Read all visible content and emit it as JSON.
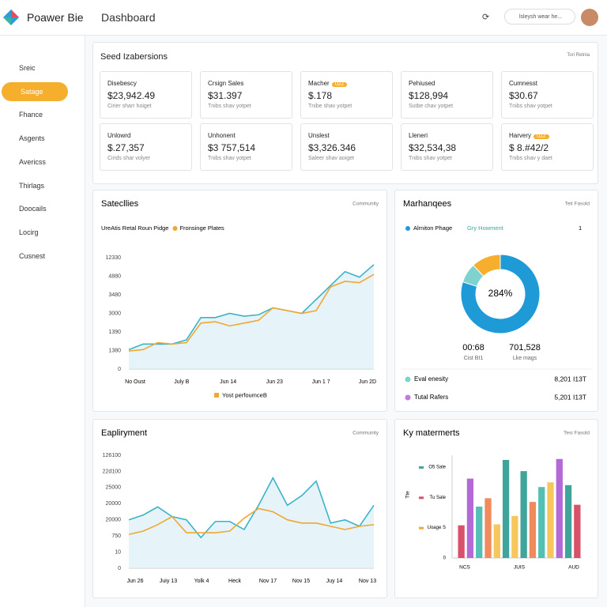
{
  "header": {
    "logo": "Poawer Bie",
    "title": "Dashboard",
    "search": "lsleysh wear he..."
  },
  "sidebar": {
    "active": 1,
    "items": [
      "Sreic",
      "Satage",
      "Fhance",
      "Asgents",
      "Avericss",
      "Thirlags",
      "Doocails",
      "Locirg",
      "Cusnest"
    ]
  },
  "kpi": {
    "title": "Seed Izabersions",
    "corner": "Tori Retnia",
    "cards": [
      {
        "label": "Disebescy",
        "value": "$23,942.49",
        "note": "Cirier sharr hoiget"
      },
      {
        "label": "Crsign Sales",
        "value": "$31.397",
        "note": "Tnibs shav yotpet"
      },
      {
        "label": "Macher",
        "badge": "UZZ",
        "value": "$.178",
        "note": "Tnibe shav yotpet"
      },
      {
        "label": "Pehiused",
        "value": "$128,994",
        "note": "Sutbe chav yotpet"
      },
      {
        "label": "Cumnesst",
        "value": "$30.67",
        "note": "Tnibs shav yotpet"
      },
      {
        "label": "Unlowrd",
        "value": "$.27,357",
        "note": "Cirids shar volyer"
      },
      {
        "label": "Unhonent",
        "value": "$3 757,514",
        "note": "Tnibs shav yotpet"
      },
      {
        "label": "Unslest",
        "value": "$3,326.346",
        "note": "Saleer shav aoiget"
      },
      {
        "label": "Lleneri",
        "value": "$32,534,38",
        "note": "Tnibs shav yotpet"
      },
      {
        "label": "Harvery",
        "badge": "UZZ",
        "value": "$ 8.#42/2",
        "note": "Tnibs shav y daet"
      }
    ]
  },
  "sales_chart": {
    "type": "line",
    "title": "Satecllies",
    "corner": "Community",
    "ylim": [
      0,
      8
    ],
    "ytick_labels": [
      "0",
      "1380",
      "1390",
      "3000",
      "3480",
      "4880",
      "12330"
    ],
    "xtick_labels": [
      "No Oust",
      "July B",
      "Jun 14",
      "Jun 23",
      "Jun 1 7",
      "Jun 2D"
    ],
    "series": [
      {
        "name": "UreAtis Retal Roun Pidge",
        "color": "#3bb3c9",
        "values": [
          1.4,
          1.8,
          1.8,
          1.8,
          2.1,
          3.7,
          3.7,
          4.0,
          3.8,
          3.9,
          4.4,
          4.2,
          4.0,
          5.0,
          6.0,
          7.0,
          6.6,
          7.5
        ]
      },
      {
        "name": "Fronsinge Plates",
        "color": "#f0a830",
        "values": [
          1.3,
          1.4,
          1.9,
          1.8,
          1.9,
          3.3,
          3.4,
          3.1,
          3.3,
          3.5,
          4.4,
          4.2,
          4.0,
          4.2,
          5.9,
          6.3,
          6.2,
          6.8
        ]
      }
    ],
    "footer": "Yost perfoumceB",
    "footer_color": "#f0a830"
  },
  "donut": {
    "type": "pie",
    "title": "Marhanqees",
    "corner": "Teit Fasold",
    "legend": [
      "Alrniton Phage",
      "Gry Howment"
    ],
    "legend_count": "1",
    "center": "284%",
    "values": [
      80,
      8,
      12
    ],
    "colors": [
      "#1e9ad6",
      "#7fd3cf",
      "#f6ae2d"
    ],
    "stats": [
      {
        "value": "00:68",
        "label": "Cist BI1"
      },
      {
        "value": "701,528",
        "label": "Lke mags"
      }
    ],
    "rows": [
      {
        "name": "Eval enesity",
        "value": "8,201 I13T",
        "color": "#7fd3cf"
      },
      {
        "name": "Tutal Rafers",
        "value": "5,201 I13T",
        "color": "#c27bd6"
      }
    ]
  },
  "employment_chart": {
    "type": "line",
    "title": "Eapliryment",
    "corner": "Community",
    "ylim": [
      0,
      7
    ],
    "ytick_labels": [
      "0",
      "10",
      "750",
      "20000",
      "20000",
      "25000",
      "22d100",
      "126100"
    ],
    "xtick_labels": [
      "Jun 26",
      "Juiy 13",
      "Yolk 4",
      "Heck",
      "Nov 17",
      "Nov 15",
      "Juy 14",
      "Nov 13"
    ],
    "series": [
      {
        "color": "#3bb3c9",
        "values": [
          3.0,
          3.3,
          3.8,
          3.2,
          3.0,
          1.9,
          2.9,
          2.9,
          2.4,
          3.9,
          5.6,
          3.9,
          4.5,
          5.4,
          2.8,
          3.0,
          2.6,
          3.9
        ]
      },
      {
        "color": "#f0a830",
        "values": [
          2.1,
          2.3,
          2.7,
          3.2,
          2.2,
          2.2,
          2.2,
          2.3,
          3.1,
          3.7,
          3.5,
          3.0,
          2.8,
          2.8,
          2.6,
          2.4,
          2.6,
          2.7
        ]
      }
    ]
  },
  "bar_chart": {
    "type": "bar",
    "title": "Ky matermerts",
    "corner": "Tesi Fasold",
    "axis_label": "Tte",
    "ylim": [
      0,
      11
    ],
    "ytick_labels": [
      "0",
      "Uoage S",
      "Tu Sale",
      "O5 Sale"
    ],
    "ytick_colors": [
      null,
      "#f0a830",
      "#d9506a",
      "#3fa59a"
    ],
    "xtick_labels": [
      "NCS",
      "JUIS",
      "AUD"
    ],
    "values": [
      3.5,
      8.5,
      5.5,
      6.4,
      3.6,
      10.5,
      4.5,
      9.3,
      6.0,
      7.6,
      8.1,
      10.6,
      7.8,
      5.7
    ],
    "colors": [
      "#d9506a",
      "#b36ad6",
      "#53bfb5",
      "#f08a5d",
      "#f7c65d",
      "#3fa59a",
      "#f7c65d",
      "#3fa59a",
      "#f08a5d",
      "#53bfb5",
      "#f7c65d",
      "#b36ad6",
      "#3fa59a",
      "#d9506a"
    ]
  }
}
